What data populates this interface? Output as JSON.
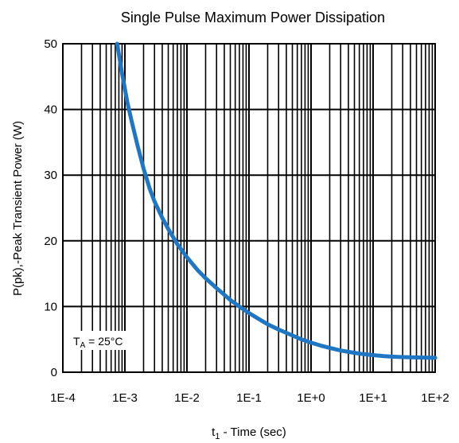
{
  "chart_data": {
    "type": "line",
    "title": "Single Pulse Maximum Power Dissipation",
    "xlabel": {
      "main": "t",
      "sub": "1",
      "rest": " - Time (sec)"
    },
    "ylabel": "P(pk),-Peak Transient Power (W)",
    "xscale": "log",
    "xlim": [
      0.0001,
      100
    ],
    "ylim": [
      0,
      50
    ],
    "grid": true,
    "x_tick_labels": [
      "1E-4",
      "1E-3",
      "1E-2",
      "1E-1",
      "1E+0",
      "1E+1",
      "1E+2"
    ],
    "y_tick_labels": [
      "0",
      "10",
      "20",
      "30",
      "40",
      "50"
    ],
    "annotation": {
      "main": "T",
      "sub": "A",
      "rest": " = 25°C"
    },
    "series": [
      {
        "color": "#1f77c4",
        "x": [
          0.00075,
          0.0009,
          0.0011,
          0.0013,
          0.0016,
          0.002,
          0.0025,
          0.003,
          0.004,
          0.005,
          0.007,
          0.01,
          0.015,
          0.02,
          0.03,
          0.05,
          0.07,
          0.1,
          0.15,
          0.2,
          0.3,
          0.5,
          0.7,
          1,
          1.5,
          2,
          3,
          5,
          7,
          10,
          15,
          20,
          30,
          50,
          70,
          100
        ],
        "y": [
          50,
          45.5,
          41,
          38,
          34.5,
          31,
          28,
          26,
          23.5,
          21.8,
          19.5,
          17.5,
          15.5,
          14.3,
          12.8,
          11,
          10,
          9,
          8,
          7.3,
          6.5,
          5.6,
          5,
          4.5,
          4,
          3.7,
          3.3,
          2.95,
          2.75,
          2.6,
          2.45,
          2.38,
          2.3,
          2.25,
          2.22,
          2.2
        ]
      }
    ]
  }
}
